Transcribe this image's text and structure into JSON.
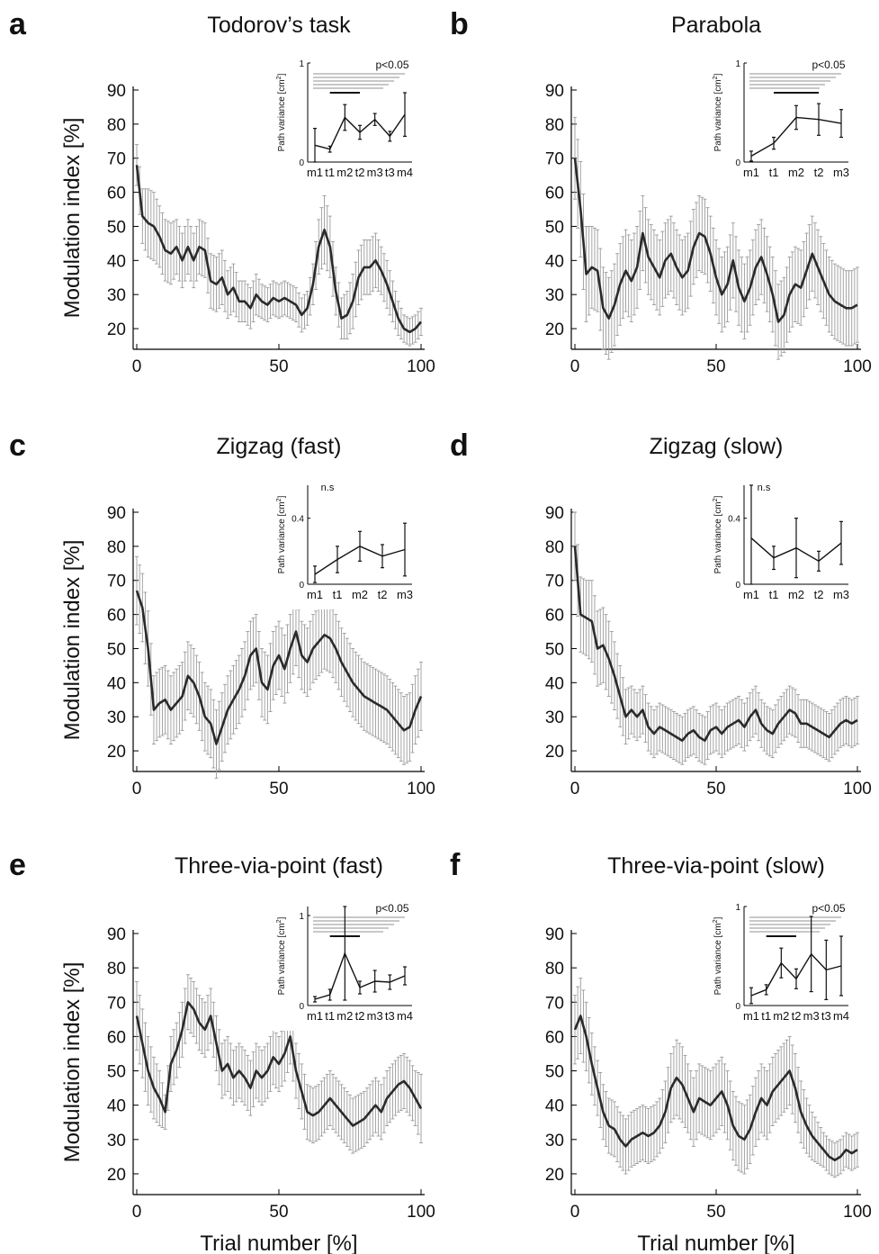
{
  "figure": {
    "y_axis_label": "Modulation index [%]",
    "x_axis_label": "Trial number [%]",
    "inset_y_label": "Path variance [cm",
    "inset_y_label_sup": "2",
    "inset_y_label_end": "]"
  },
  "chart_data": [
    {
      "panel": "a",
      "type": "line",
      "title": "Todorov’s task",
      "xlabel": "",
      "ylabel": "Modulation index [%]",
      "xlim": [
        0,
        100
      ],
      "ylim": [
        15,
        90
      ],
      "xticks": [
        0,
        50,
        100
      ],
      "yticks": [
        20,
        30,
        40,
        50,
        60,
        70,
        80,
        90
      ],
      "knots_x": [
        0,
        2,
        4,
        6,
        8,
        10,
        12,
        14,
        16,
        18,
        20,
        22,
        24,
        26,
        28,
        30,
        32,
        34,
        36,
        38,
        40,
        42,
        44,
        46,
        48,
        50,
        52,
        54,
        56,
        58,
        60,
        62,
        64,
        66,
        68,
        70,
        72,
        74,
        76,
        78,
        80,
        82,
        84,
        86,
        88,
        90,
        92,
        94,
        96,
        98,
        100
      ],
      "knots_y": [
        68,
        53,
        51,
        50,
        47,
        43,
        42,
        44,
        40,
        44,
        40,
        44,
        43,
        34,
        33,
        35,
        30,
        32,
        28,
        28,
        26,
        30,
        28,
        27,
        29,
        28,
        29,
        28,
        27,
        24,
        26,
        33,
        44,
        49,
        44,
        31,
        23,
        24,
        28,
        35,
        38,
        38,
        40,
        37,
        33,
        28,
        23,
        20,
        19,
        20,
        22
      ],
      "error_knots": [
        6,
        8,
        10,
        10,
        9,
        9,
        9,
        8,
        8,
        8,
        8,
        8,
        8,
        8,
        8,
        8,
        7,
        7,
        6,
        6,
        6,
        6,
        5,
        5,
        5,
        5,
        5,
        5,
        5,
        5,
        5,
        6,
        8,
        10,
        9,
        7,
        6,
        7,
        8,
        8,
        8,
        8,
        8,
        7,
        7,
        6,
        5,
        4,
        4,
        4,
        4
      ],
      "inset": {
        "categories": [
          "m1",
          "t1",
          "m2",
          "t2",
          "m3",
          "t3",
          "m4"
        ],
        "values": [
          0.17,
          0.13,
          0.45,
          0.3,
          0.43,
          0.26,
          0.48
        ],
        "errors": [
          0.17,
          0.03,
          0.13,
          0.07,
          0.06,
          0.05,
          0.22
        ],
        "ylim": [
          0,
          1
        ],
        "ytick_labels": [
          "0",
          "1"
        ],
        "yticks": [
          0,
          1
        ],
        "significance": "p<0.05"
      }
    },
    {
      "panel": "b",
      "type": "line",
      "title": "Parabola",
      "xlabel": "",
      "ylabel": "",
      "xlim": [
        0,
        100
      ],
      "ylim": [
        15,
        90
      ],
      "xticks": [
        0,
        50,
        100
      ],
      "yticks": [
        20,
        30,
        40,
        50,
        60,
        70,
        80,
        90
      ],
      "knots_x": [
        0,
        2,
        4,
        6,
        8,
        10,
        12,
        14,
        16,
        18,
        20,
        22,
        24,
        26,
        28,
        30,
        32,
        34,
        36,
        38,
        40,
        42,
        44,
        46,
        48,
        50,
        52,
        54,
        56,
        58,
        60,
        62,
        64,
        66,
        68,
        70,
        72,
        74,
        76,
        78,
        80,
        82,
        84,
        86,
        88,
        90,
        92,
        94,
        96,
        98,
        100
      ],
      "knots_y": [
        70,
        55,
        36,
        38,
        37,
        26,
        23,
        27,
        33,
        37,
        34,
        38,
        48,
        41,
        38,
        35,
        40,
        42,
        38,
        35,
        37,
        44,
        48,
        47,
        42,
        35,
        30,
        33,
        40,
        32,
        28,
        32,
        38,
        41,
        36,
        30,
        22,
        24,
        30,
        33,
        32,
        37,
        42,
        38,
        34,
        30,
        28,
        27,
        26,
        26,
        27
      ],
      "error_knots": [
        12,
        14,
        14,
        12,
        12,
        12,
        12,
        12,
        12,
        12,
        12,
        12,
        11,
        11,
        11,
        11,
        11,
        11,
        11,
        11,
        11,
        11,
        11,
        11,
        11,
        11,
        11,
        11,
        11,
        11,
        11,
        11,
        11,
        11,
        11,
        11,
        11,
        11,
        11,
        11,
        11,
        11,
        11,
        11,
        11,
        11,
        11,
        11,
        11,
        11,
        11
      ],
      "inset": {
        "categories": [
          "m1",
          "t1",
          "m2",
          "t2",
          "m3"
        ],
        "values": [
          0.06,
          0.19,
          0.45,
          0.43,
          0.39
        ],
        "errors": [
          0.05,
          0.06,
          0.12,
          0.16,
          0.14
        ],
        "ylim": [
          0,
          1
        ],
        "ytick_labels": [
          "0",
          "1"
        ],
        "yticks": [
          0,
          1
        ],
        "significance": "p<0.05"
      }
    },
    {
      "panel": "c",
      "type": "line",
      "title": "Zigzag (fast)",
      "xlabel": "",
      "ylabel": "Modulation index [%]",
      "xlim": [
        0,
        100
      ],
      "ylim": [
        15,
        90
      ],
      "xticks": [
        0,
        50,
        100
      ],
      "yticks": [
        20,
        30,
        40,
        50,
        60,
        70,
        80,
        90
      ],
      "knots_x": [
        0,
        2,
        4,
        6,
        8,
        10,
        12,
        14,
        16,
        18,
        20,
        22,
        24,
        26,
        28,
        30,
        32,
        34,
        36,
        38,
        40,
        42,
        44,
        46,
        48,
        50,
        52,
        54,
        56,
        58,
        60,
        62,
        64,
        66,
        68,
        70,
        72,
        74,
        76,
        78,
        80,
        82,
        84,
        86,
        88,
        90,
        92,
        94,
        96,
        98,
        100
      ],
      "knots_y": [
        67,
        62,
        50,
        32,
        34,
        35,
        32,
        34,
        36,
        42,
        40,
        36,
        30,
        28,
        22,
        27,
        32,
        35,
        38,
        42,
        48,
        50,
        40,
        38,
        45,
        48,
        44,
        50,
        55,
        48,
        46,
        50,
        52,
        54,
        53,
        50,
        46,
        43,
        40,
        38,
        36,
        35,
        34,
        33,
        32,
        30,
        28,
        26,
        27,
        32,
        36
      ],
      "error_knots": [
        10,
        10,
        11,
        10,
        10,
        10,
        10,
        10,
        10,
        10,
        10,
        10,
        10,
        10,
        10,
        10,
        10,
        10,
        10,
        10,
        10,
        10,
        10,
        10,
        10,
        10,
        10,
        10,
        10,
        10,
        10,
        10,
        10,
        10,
        10,
        10,
        10,
        10,
        10,
        10,
        10,
        10,
        10,
        10,
        10,
        10,
        10,
        10,
        10,
        10,
        10
      ],
      "inset": {
        "categories": [
          "m1",
          "t1",
          "m2",
          "t2",
          "m3"
        ],
        "values": [
          0.06,
          0.15,
          0.23,
          0.17,
          0.21
        ],
        "errors": [
          0.05,
          0.08,
          0.09,
          0.07,
          0.16
        ],
        "ylim": [
          0,
          0.6
        ],
        "ytick_labels": [
          "0",
          "0.4"
        ],
        "yticks": [
          0,
          0.4
        ],
        "significance": "n.s"
      }
    },
    {
      "panel": "d",
      "type": "line",
      "title": "Zigzag (slow)",
      "xlabel": "",
      "ylabel": "",
      "xlim": [
        0,
        100
      ],
      "ylim": [
        15,
        90
      ],
      "xticks": [
        0,
        50,
        100
      ],
      "yticks": [
        20,
        30,
        40,
        50,
        60,
        70,
        80,
        90
      ],
      "knots_x": [
        0,
        2,
        4,
        6,
        8,
        10,
        12,
        14,
        16,
        18,
        20,
        22,
        24,
        26,
        28,
        30,
        32,
        34,
        36,
        38,
        40,
        42,
        44,
        46,
        48,
        50,
        52,
        54,
        56,
        58,
        60,
        62,
        64,
        66,
        68,
        70,
        72,
        74,
        76,
        78,
        80,
        82,
        84,
        86,
        88,
        90,
        92,
        94,
        96,
        98,
        100
      ],
      "knots_y": [
        80,
        60,
        59,
        58,
        50,
        51,
        47,
        42,
        36,
        30,
        32,
        30,
        32,
        27,
        25,
        27,
        26,
        25,
        24,
        23,
        25,
        26,
        24,
        23,
        26,
        27,
        25,
        27,
        28,
        29,
        27,
        30,
        32,
        28,
        26,
        25,
        28,
        30,
        32,
        31,
        28,
        28,
        27,
        26,
        25,
        24,
        26,
        28,
        29,
        28,
        29
      ],
      "error_knots": [
        10,
        11,
        11,
        12,
        11,
        11,
        11,
        10,
        9,
        8,
        7,
        7,
        7,
        7,
        7,
        7,
        7,
        7,
        7,
        7,
        7,
        7,
        7,
        7,
        7,
        7,
        7,
        7,
        7,
        7,
        7,
        7,
        7,
        7,
        7,
        7,
        7,
        7,
        7,
        7,
        7,
        7,
        7,
        7,
        7,
        7,
        7,
        7,
        7,
        7,
        7
      ],
      "inset": {
        "categories": [
          "m1",
          "t1",
          "m2",
          "t2",
          "m3"
        ],
        "values": [
          0.28,
          0.16,
          0.22,
          0.14,
          0.25
        ],
        "errors": [
          0.42,
          0.07,
          0.18,
          0.06,
          0.13
        ],
        "ylim": [
          0,
          0.6
        ],
        "ytick_labels": [
          "0",
          "0.4"
        ],
        "yticks": [
          0,
          0.4
        ],
        "significance": "n.s"
      }
    },
    {
      "panel": "e",
      "type": "line",
      "title": "Three-via-point (fast)",
      "xlabel": "Trial number [%]",
      "ylabel": "Modulation index [%]",
      "xlim": [
        0,
        100
      ],
      "ylim": [
        15,
        90
      ],
      "xticks": [
        0,
        50,
        100
      ],
      "yticks": [
        20,
        30,
        40,
        50,
        60,
        70,
        80,
        90
      ],
      "knots_x": [
        0,
        2,
        4,
        6,
        8,
        10,
        12,
        14,
        16,
        18,
        20,
        22,
        24,
        26,
        28,
        30,
        32,
        34,
        36,
        38,
        40,
        42,
        44,
        46,
        48,
        50,
        52,
        54,
        56,
        58,
        60,
        62,
        64,
        66,
        68,
        70,
        72,
        74,
        76,
        78,
        80,
        82,
        84,
        86,
        88,
        90,
        92,
        94,
        96,
        98,
        100
      ],
      "knots_y": [
        66,
        58,
        50,
        45,
        42,
        38,
        52,
        56,
        62,
        70,
        68,
        64,
        62,
        66,
        58,
        50,
        52,
        48,
        50,
        48,
        45,
        50,
        48,
        50,
        54,
        52,
        55,
        60,
        50,
        44,
        38,
        37,
        38,
        40,
        42,
        40,
        38,
        36,
        34,
        35,
        36,
        38,
        40,
        38,
        42,
        44,
        46,
        47,
        45,
        42,
        39
      ],
      "error_knots": [
        10,
        10,
        10,
        9,
        8,
        5,
        8,
        8,
        8,
        8,
        8,
        8,
        8,
        8,
        8,
        8,
        8,
        8,
        8,
        8,
        8,
        8,
        8,
        8,
        8,
        8,
        8,
        8,
        8,
        8,
        8,
        8,
        8,
        8,
        8,
        8,
        8,
        8,
        8,
        8,
        8,
        8,
        8,
        8,
        8,
        8,
        8,
        8,
        8,
        8,
        10
      ],
      "inset": {
        "categories": [
          "m1",
          "t1",
          "m2",
          "t2",
          "m3",
          "t3",
          "m4"
        ],
        "values": [
          0.07,
          0.12,
          0.58,
          0.2,
          0.27,
          0.26,
          0.33
        ],
        "errors": [
          0.03,
          0.06,
          0.52,
          0.07,
          0.12,
          0.08,
          0.1
        ],
        "ylim": [
          0,
          1.1
        ],
        "ytick_labels": [
          "0",
          "1"
        ],
        "yticks": [
          0,
          1
        ],
        "significance": "p<0.05"
      }
    },
    {
      "panel": "f",
      "type": "line",
      "title": "Three-via-point (slow)",
      "xlabel": "Trial number [%]",
      "ylabel": "",
      "xlim": [
        0,
        100
      ],
      "ylim": [
        15,
        90
      ],
      "xticks": [
        0,
        50,
        100
      ],
      "yticks": [
        20,
        30,
        40,
        50,
        60,
        70,
        80,
        90
      ],
      "knots_x": [
        0,
        2,
        4,
        6,
        8,
        10,
        12,
        14,
        16,
        18,
        20,
        22,
        24,
        26,
        28,
        30,
        32,
        34,
        36,
        38,
        40,
        42,
        44,
        46,
        48,
        50,
        52,
        54,
        56,
        58,
        60,
        62,
        64,
        66,
        68,
        70,
        72,
        74,
        76,
        78,
        80,
        82,
        84,
        86,
        88,
        90,
        92,
        94,
        96,
        98,
        100
      ],
      "knots_y": [
        62,
        66,
        60,
        52,
        45,
        38,
        34,
        33,
        30,
        28,
        30,
        31,
        32,
        31,
        32,
        34,
        38,
        45,
        48,
        46,
        42,
        38,
        42,
        41,
        40,
        42,
        44,
        40,
        34,
        31,
        30,
        33,
        38,
        42,
        40,
        44,
        46,
        48,
        50,
        45,
        38,
        34,
        31,
        29,
        27,
        25,
        24,
        25,
        27,
        26,
        27
      ],
      "error_knots": [
        10,
        11,
        10,
        9,
        8,
        8,
        8,
        8,
        8,
        8,
        8,
        8,
        8,
        8,
        8,
        8,
        9,
        10,
        11,
        11,
        10,
        10,
        10,
        10,
        10,
        10,
        10,
        10,
        10,
        10,
        10,
        10,
        10,
        10,
        10,
        10,
        10,
        10,
        10,
        10,
        9,
        8,
        7,
        6,
        5,
        5,
        5,
        5,
        5,
        5,
        5
      ],
      "inset": {
        "categories": [
          "m1",
          "t1",
          "m2",
          "t2",
          "m3",
          "t3",
          "m4"
        ],
        "values": [
          0.1,
          0.16,
          0.43,
          0.27,
          0.52,
          0.36,
          0.4
        ],
        "errors": [
          0.08,
          0.05,
          0.15,
          0.1,
          0.38,
          0.3,
          0.3
        ],
        "ylim": [
          0,
          1
        ],
        "ytick_labels": [
          "0",
          "1"
        ],
        "yticks": [
          0,
          1
        ],
        "significance": "p<0.05"
      }
    }
  ]
}
